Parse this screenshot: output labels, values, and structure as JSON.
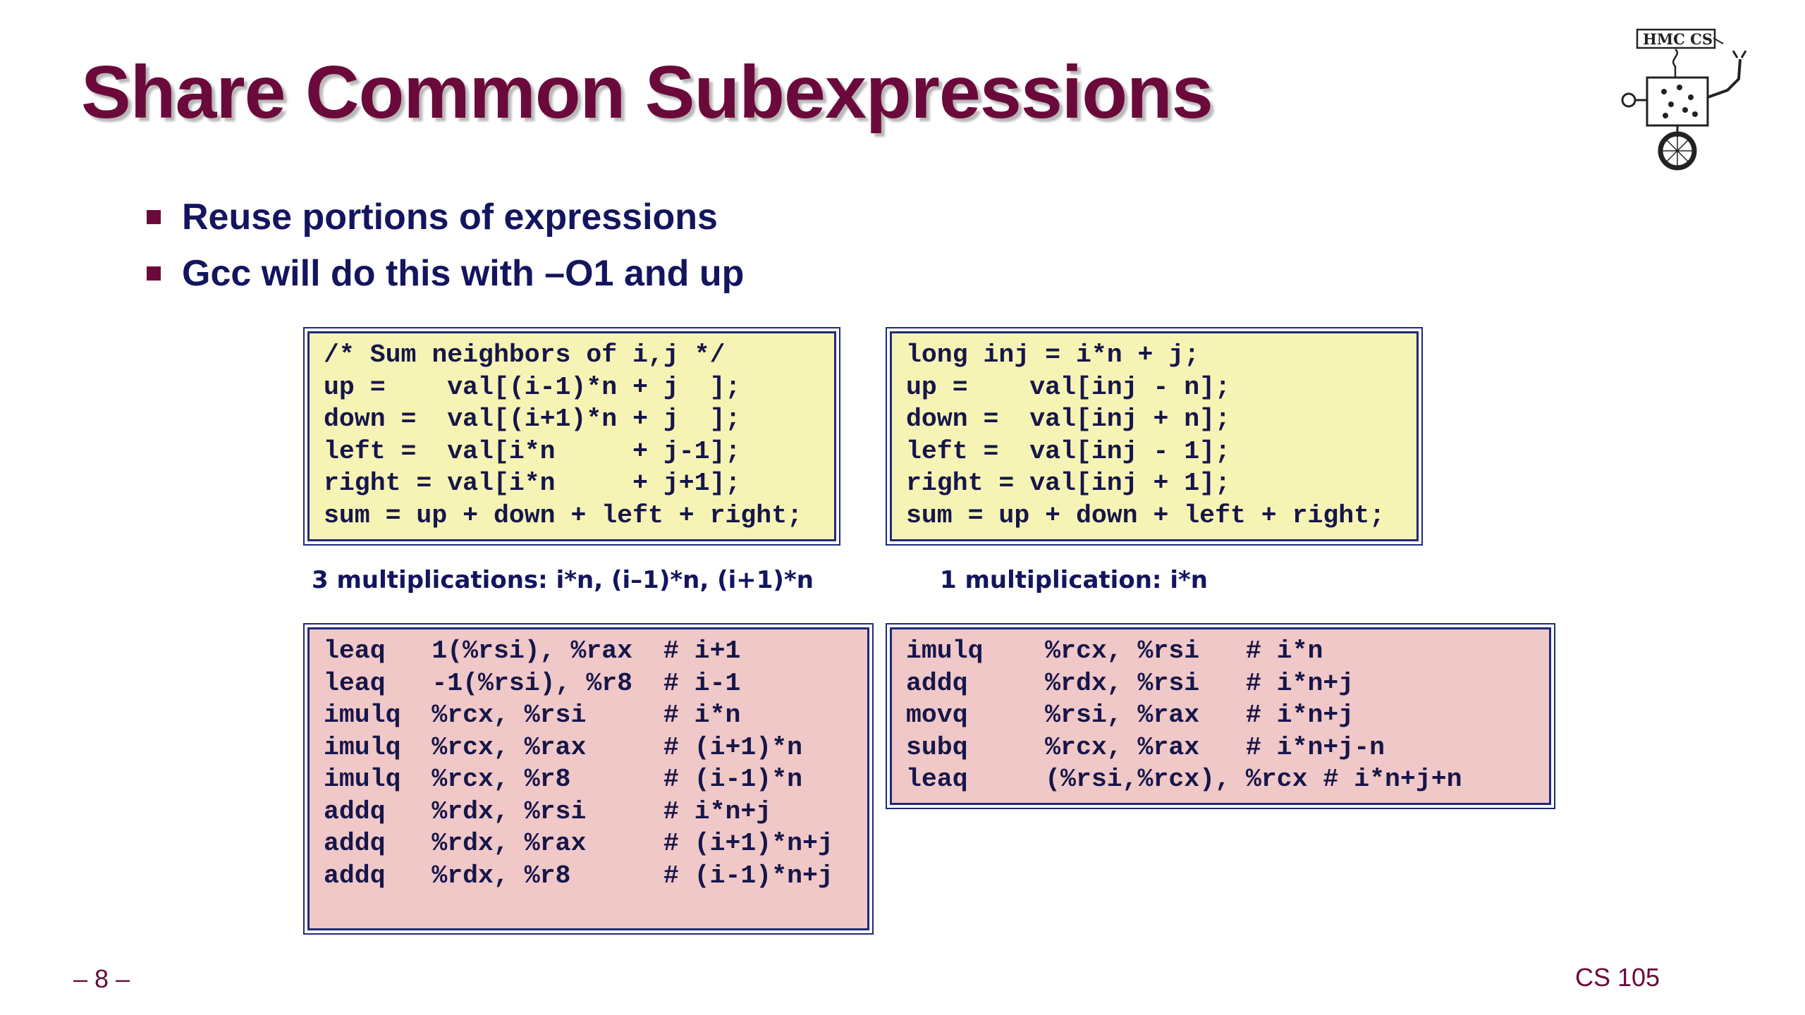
{
  "slide": {
    "title": "Share Common Subexpressions",
    "bullets": [
      "Reuse portions of expressions",
      "Gcc will do this with –O1 and up"
    ],
    "logo": {
      "text": "HMC CS",
      "icon": "hmc-cs-robot-logo-icon"
    },
    "left_c_code": "/* Sum neighbors of i,j */\nup =    val[(i-1)*n + j  ];\ndown =  val[(i+1)*n + j  ];\nleft =  val[i*n     + j-1];\nright = val[i*n     + j+1];\nsum = up + down + left + right;",
    "right_c_code": "long inj = i*n + j;\nup =    val[inj - n];\ndown =  val[inj + n];\nleft =  val[inj - 1];\nright = val[inj + 1];\nsum = up + down + left + right;",
    "left_caption": "3 multiplications: i*n, (i–1)*n, (i+1)*n",
    "right_caption": "1 multiplication: i*n",
    "left_asm": "leaq   1(%rsi), %rax  # i+1\nleaq   -1(%rsi), %r8  # i-1\nimulq  %rcx, %rsi     # i*n\nimulq  %rcx, %rax     # (i+1)*n\nimulq  %rcx, %r8      # (i-1)*n\naddq   %rdx, %rsi     # i*n+j\naddq   %rdx, %rax     # (i+1)*n+j\naddq   %rdx, %r8      # (i-1)*n+j",
    "right_asm": "imulq    %rcx, %rsi   # i*n\naddq     %rdx, %rsi   # i*n+j\nmovq     %rsi, %rax   # i*n+j\nsubq     %rcx, %rax   # i*n+j-n\nleaq     (%rsi,%rcx), %rcx # i*n+j+n",
    "page_number": "– 8 –",
    "course": "CS 105"
  },
  "colors": {
    "title": "#6b0a3a",
    "bullet_text": "#13155e",
    "yellow_box": "#f6f4b4",
    "pink_box": "#f0c8c8",
    "box_border": "#1e2a7a"
  }
}
